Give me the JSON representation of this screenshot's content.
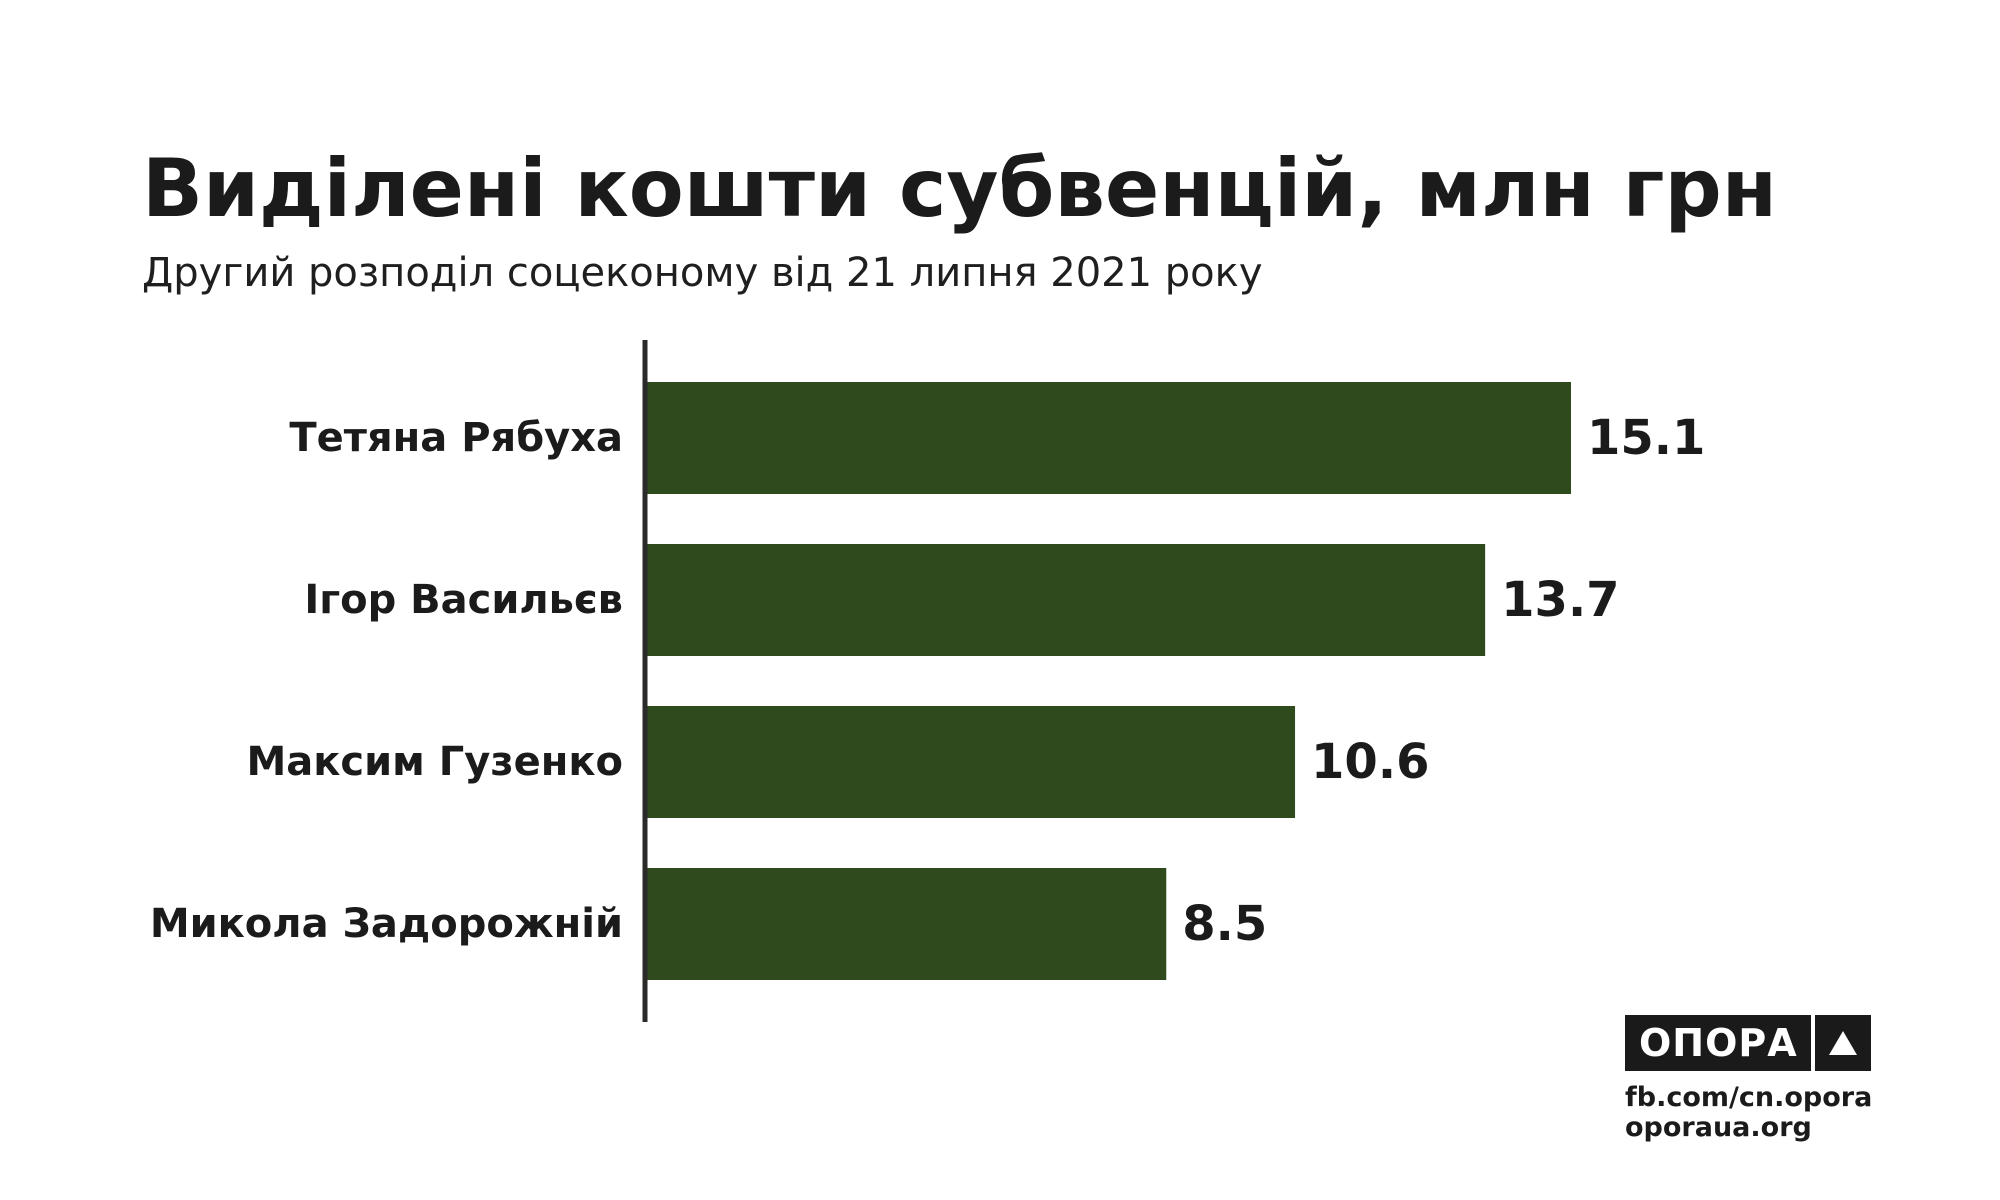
{
  "title": "Виділені кошти субвенцій, млн грн",
  "subtitle": "Другий розподіл соцеконому від 21 липня 2021 року",
  "colors": {
    "bar": "#2f4a1c",
    "axis": "#2a2a2a",
    "text": "#1b1b1b"
  },
  "chart_data": {
    "type": "bar",
    "orientation": "horizontal",
    "categories": [
      "Тетяна Рябуха",
      "Ігор Васильєв",
      "Максим Гузенко",
      "Микола Задорожній"
    ],
    "values": [
      15.1,
      13.7,
      10.6,
      8.5
    ],
    "value_labels": [
      "15.1",
      "13.7",
      "10.6",
      "8.5"
    ],
    "xlim": [
      0,
      15.1
    ],
    "grid": false,
    "legend": "none"
  },
  "branding": {
    "logo_text": "ОПОРА",
    "logo_icon": "triangle-icon",
    "links": [
      "fb.com/cn.opora",
      "oporaua.org"
    ]
  }
}
